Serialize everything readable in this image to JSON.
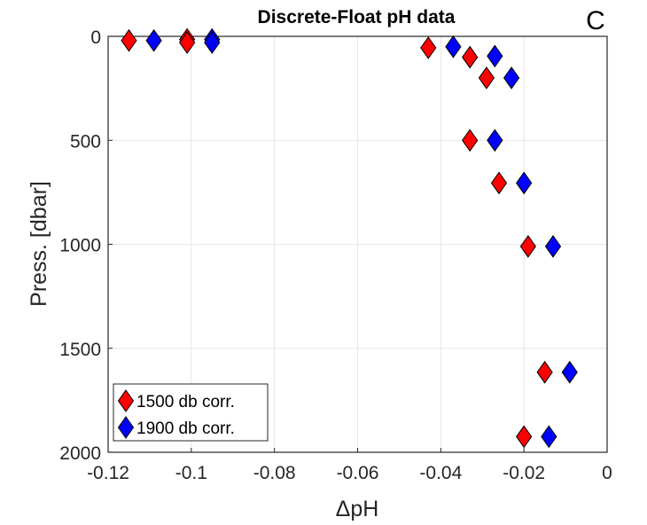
{
  "chart_data": {
    "type": "scatter",
    "title": "Discrete-Float pH data",
    "panel_label": "C",
    "xlabel": "ΔpH",
    "ylabel": "Press. [dbar]",
    "xlim": [
      -0.12,
      0
    ],
    "ylim": [
      0,
      2000
    ],
    "y_reversed": true,
    "grid": true,
    "legend_position": "bottom-left",
    "x_ticks": [
      "-0.12",
      "-0.1",
      "-0.08",
      "-0.06",
      "-0.04",
      "-0.02",
      "0"
    ],
    "x_tick_values": [
      -0.12,
      -0.1,
      -0.08,
      -0.06,
      -0.04,
      -0.02,
      0
    ],
    "y_ticks": [
      "0",
      "500",
      "1000",
      "1500",
      "2000"
    ],
    "y_tick_values": [
      0,
      500,
      1000,
      1500,
      2000
    ],
    "series": [
      {
        "name": "1500 db corr.",
        "color": "#ff0000",
        "marker": "diamond",
        "points": [
          {
            "x": -0.115,
            "y": 20
          },
          {
            "x": -0.101,
            "y": 15
          },
          {
            "x": -0.101,
            "y": 30
          },
          {
            "x": -0.043,
            "y": 55
          },
          {
            "x": -0.033,
            "y": 100
          },
          {
            "x": -0.029,
            "y": 200
          },
          {
            "x": -0.033,
            "y": 500
          },
          {
            "x": -0.026,
            "y": 705
          },
          {
            "x": -0.019,
            "y": 1010
          },
          {
            "x": -0.015,
            "y": 1615
          },
          {
            "x": -0.02,
            "y": 1925
          }
        ]
      },
      {
        "name": "1900 db corr.",
        "color": "#0000ff",
        "marker": "diamond",
        "points": [
          {
            "x": -0.109,
            "y": 20
          },
          {
            "x": -0.095,
            "y": 15
          },
          {
            "x": -0.095,
            "y": 30
          },
          {
            "x": -0.037,
            "y": 50
          },
          {
            "x": -0.027,
            "y": 95
          },
          {
            "x": -0.023,
            "y": 200
          },
          {
            "x": -0.027,
            "y": 500
          },
          {
            "x": -0.02,
            "y": 705
          },
          {
            "x": -0.013,
            "y": 1010
          },
          {
            "x": -0.009,
            "y": 1615
          },
          {
            "x": -0.014,
            "y": 1925
          }
        ]
      }
    ]
  }
}
